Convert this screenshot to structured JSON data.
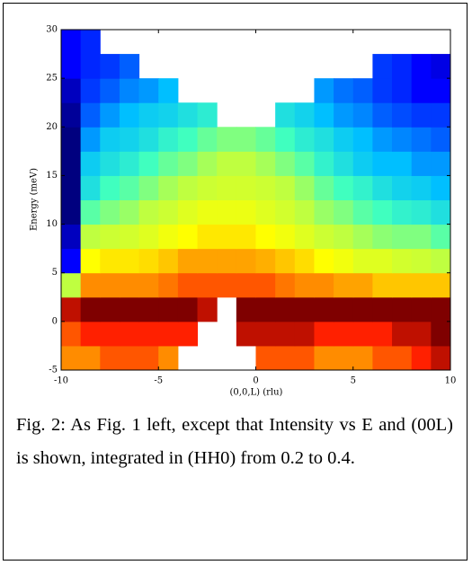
{
  "chart_data": {
    "type": "heatmap",
    "xlabel": "(0,0,L) (rlu)",
    "ylabel": "Energy (meV)",
    "xbins": [
      -10,
      -9,
      -8,
      -7,
      -6,
      -5,
      -4,
      -3,
      -2,
      -1,
      0,
      1,
      2,
      3,
      4,
      5,
      6,
      7,
      8,
      9,
      10
    ],
    "ybins": [
      -5,
      -2.5,
      0,
      2.5,
      5,
      7.5,
      10,
      12.5,
      15,
      17.5,
      20,
      22.5,
      25,
      27.5,
      30
    ],
    "z": [
      [
        0.8,
        0.8,
        0.85,
        0.85,
        0.85,
        0.8,
        null,
        null,
        null,
        null,
        0.85,
        0.85,
        0.85,
        0.8,
        0.8,
        0.8,
        0.85,
        0.85,
        0.9,
        0.95
      ],
      [
        0.85,
        0.9,
        0.9,
        0.9,
        0.9,
        0.9,
        0.9,
        null,
        null,
        0.95,
        0.95,
        0.95,
        0.95,
        0.9,
        0.9,
        0.9,
        0.9,
        0.95,
        0.95,
        1
      ],
      [
        0.95,
        1,
        1,
        1,
        1,
        1,
        1,
        0.95,
        null,
        1,
        1,
        1,
        1,
        1,
        1,
        1,
        1,
        1,
        1,
        1
      ],
      [
        0.6,
        0.8,
        0.8,
        0.8,
        0.8,
        0.82,
        0.85,
        0.85,
        0.85,
        0.85,
        0.85,
        0.82,
        0.8,
        0.8,
        0.78,
        0.78,
        0.75,
        0.75,
        0.75,
        0.75
      ],
      [
        0.3,
        0.7,
        0.72,
        0.72,
        0.73,
        0.75,
        0.78,
        0.78,
        0.78,
        0.78,
        0.77,
        0.75,
        0.73,
        0.7,
        0.68,
        0.65,
        0.65,
        0.63,
        0.62,
        0.6
      ],
      [
        0.25,
        0.6,
        0.62,
        0.63,
        0.65,
        0.68,
        0.7,
        0.72,
        0.72,
        0.72,
        0.7,
        0.68,
        0.65,
        0.62,
        0.6,
        0.58,
        0.56,
        0.55,
        0.55,
        0.52
      ],
      [
        0.2,
        0.52,
        0.55,
        0.57,
        0.6,
        0.62,
        0.65,
        0.67,
        0.67,
        0.67,
        0.65,
        0.63,
        0.6,
        0.57,
        0.55,
        0.52,
        0.5,
        0.48,
        0.47,
        0.45
      ],
      [
        0.2,
        0.45,
        0.5,
        0.52,
        0.55,
        0.58,
        0.6,
        0.62,
        0.63,
        0.63,
        0.62,
        0.6,
        0.57,
        0.53,
        0.5,
        0.48,
        0.45,
        0.43,
        0.42,
        0.4
      ],
      [
        0.2,
        0.42,
        0.45,
        0.47,
        0.5,
        0.53,
        0.55,
        0.58,
        0.6,
        0.6,
        0.58,
        0.55,
        0.52,
        0.48,
        0.45,
        0.42,
        0.4,
        0.4,
        0.38,
        0.38
      ],
      [
        0.2,
        0.38,
        0.42,
        0.43,
        0.45,
        0.48,
        0.5,
        0.53,
        0.55,
        0.55,
        0.53,
        0.5,
        0.47,
        0.45,
        0.42,
        0.4,
        0.38,
        0.37,
        0.36,
        0.35
      ],
      [
        0.22,
        0.35,
        0.38,
        0.4,
        0.42,
        0.43,
        0.45,
        0.47,
        null,
        null,
        null,
        0.45,
        0.43,
        0.4,
        0.38,
        0.37,
        0.35,
        0.34,
        0.33,
        0.33
      ],
      [
        0.25,
        0.33,
        0.35,
        0.37,
        0.38,
        0.4,
        null,
        null,
        null,
        null,
        null,
        null,
        null,
        0.38,
        0.36,
        0.35,
        0.33,
        0.32,
        0.3,
        0.3
      ],
      [
        0.3,
        0.32,
        0.33,
        0.35,
        null,
        null,
        null,
        null,
        null,
        null,
        null,
        null,
        null,
        null,
        null,
        null,
        0.33,
        0.32,
        0.3,
        0.28
      ],
      [
        0.3,
        0.32,
        null,
        null,
        null,
        null,
        null,
        null,
        null,
        null,
        null,
        null,
        null,
        null,
        null,
        null,
        null,
        null,
        null,
        null
      ]
    ],
    "colormap": [
      "#00007f",
      "#0000ff",
      "#00bfff",
      "#40ffbf",
      "#bfff40",
      "#ffff00",
      "#ff8c00",
      "#ff2000",
      "#7f0000"
    ],
    "xlim": [
      -10,
      10
    ],
    "ylim": [
      -5,
      30
    ],
    "xticks": [
      -10,
      -5,
      0,
      5,
      10
    ],
    "yticks": [
      -5,
      0,
      5,
      10,
      15,
      20,
      25,
      30
    ]
  },
  "caption": "Fig. 2: As Fig. 1 left, except that Intensity vs E and (00L) is shown, integrated in (HH0) from 0.2 to 0.4."
}
